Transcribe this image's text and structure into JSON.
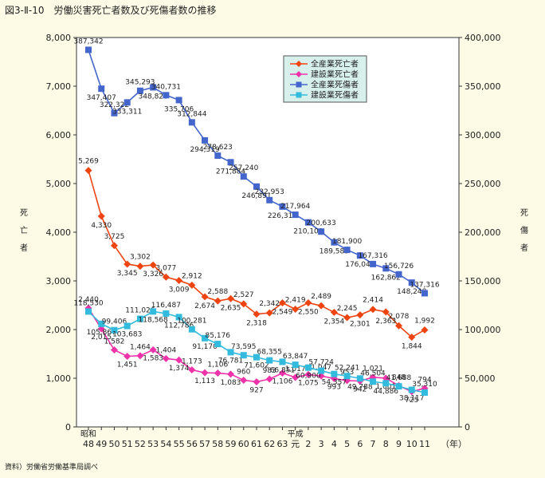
{
  "figure": {
    "title": "図3-Ⅱ-10　労働災害死亡者数及び死傷者数の推移",
    "source": "資料）労働省労働基準局調べ"
  },
  "chart_data": {
    "type": "line",
    "title": "図3-Ⅱ-10　労働災害死亡者数及び死傷者数の推移",
    "x_tick_labels": [
      "48",
      "49",
      "50",
      "51",
      "52",
      "53",
      "54",
      "55",
      "56",
      "57",
      "58",
      "59",
      "60",
      "61",
      "62",
      "63",
      "元",
      "2",
      "3",
      "4",
      "5",
      "6",
      "7",
      "8",
      "9",
      "10",
      "11"
    ],
    "x_era_labels": [
      {
        "at": 0,
        "text": "昭和"
      },
      {
        "at": 16,
        "text": "平成"
      }
    ],
    "x_unit": "（年）",
    "ylabel_left": "死亡者",
    "ylabel_right": "死傷者",
    "ylim_left": [
      0,
      8000
    ],
    "ylim_right": [
      0,
      400000
    ],
    "yticks_left": [
      "0",
      "1,000",
      "2,000",
      "3,000",
      "4,000",
      "5,000",
      "6,000",
      "7,000",
      "8,000"
    ],
    "yticks_right": [
      "0",
      "50,000",
      "100,000",
      "150,000",
      "200,000",
      "250,000",
      "300,000",
      "350,000",
      "400,000"
    ],
    "grid": false,
    "legend_position": "top-right",
    "series": [
      {
        "name": "全産業死亡者",
        "axis": "left",
        "color": "#ee4411",
        "marker": "diamond",
        "values": [
          5269,
          4330,
          3725,
          3345,
          3302,
          3326,
          3077,
          3009,
          2912,
          2674,
          2588,
          2635,
          2527,
          2318,
          2342,
          2549,
          2419,
          2550,
          2489,
          2354,
          2245,
          2301,
          2414,
          2363,
          2078,
          1844,
          1992
        ],
        "labels": [
          "5,269",
          "4,330",
          "3,725",
          "3,345",
          "3,302",
          "3,326",
          "3,077",
          "3,009",
          "2,912",
          "2,674",
          "2,588",
          "2,635",
          "2,527",
          "2,318",
          "2,342",
          "2,549",
          "2,419",
          "2,550",
          "2,489",
          "2,354",
          "2,245",
          "2,301",
          "2,414",
          "2,363",
          "2,078",
          "1,844",
          "1,992"
        ]
      },
      {
        "name": "建設業死亡者",
        "axis": "left",
        "color": "#ee33aa",
        "marker": "diamond",
        "values": [
          2440,
          2015,
          1582,
          1451,
          1464,
          1583,
          1404,
          1374,
          1173,
          1113,
          1106,
          1083,
          960,
          927,
          983,
          1106,
          1017,
          1075,
          1047,
          993,
          953,
          942,
          1021,
          1001,
          848,
          725,
          794
        ],
        "labels": [
          "2,440",
          "2,015",
          "1,582",
          "1,451",
          "1,464",
          "1,583",
          "1,404",
          "1,374",
          "1,173",
          "1,113",
          "1,106",
          "1,083",
          "960",
          "927",
          "983",
          "1,106",
          "1,017",
          "1,075",
          "1,047",
          "993",
          "953",
          "942",
          "1,021",
          "1,001",
          "848",
          "725",
          "794"
        ]
      },
      {
        "name": "全産業死傷者",
        "axis": "right",
        "color": "#4466cc",
        "marker": "square",
        "values": [
          387342,
          347407,
          322322,
          333311,
          345293,
          348826,
          340731,
          335706,
          312844,
          294319,
          278623,
          271884,
          257240,
          246891,
          232953,
          226318,
          217964,
          210108,
          200633,
          189589,
          181900,
          176047,
          167316,
          162862,
          156726,
          148248,
          137316
        ],
        "labels": [
          "387,342",
          "347,407",
          "322,322",
          "333,311",
          "345,293",
          "348,826",
          "340,731",
          "335,706",
          "312,844",
          "294,319",
          "278,623",
          "271,884",
          "257,240",
          "246,891",
          "232,953",
          "226,318",
          "217,964",
          "210,108",
          "200,633",
          "189,589",
          "181,900",
          "176,047",
          "167,316",
          "162,862",
          "156,726",
          "148,248",
          "137,316"
        ]
      },
      {
        "name": "建設業死傷者",
        "axis": "right",
        "color": "#33bbdd",
        "marker": "square",
        "values": [
          118530,
          105867,
          99406,
          103683,
          111026,
          118568,
          116487,
          112786,
          100281,
          91170,
          85176,
          76781,
          73595,
          71602,
          68355,
          66851,
          63847,
          60900,
          57724,
          54357,
          52241,
          49788,
          46504,
          44886,
          41688,
          38117,
          35310
        ],
        "labels": [
          "118,530",
          "105,867",
          "99,406",
          "103,683",
          "111,026",
          "118,568",
          "116,487",
          "112,786",
          "100,281",
          "91,170",
          "85,176",
          "76,781",
          "73,595",
          "71,602",
          "68,355",
          "66,851",
          "63,847",
          "60,900",
          "57,724",
          "54,357",
          "52,241",
          "49,788",
          "46,504",
          "44,886",
          "41,688",
          "38,117",
          "35,310"
        ]
      }
    ]
  }
}
